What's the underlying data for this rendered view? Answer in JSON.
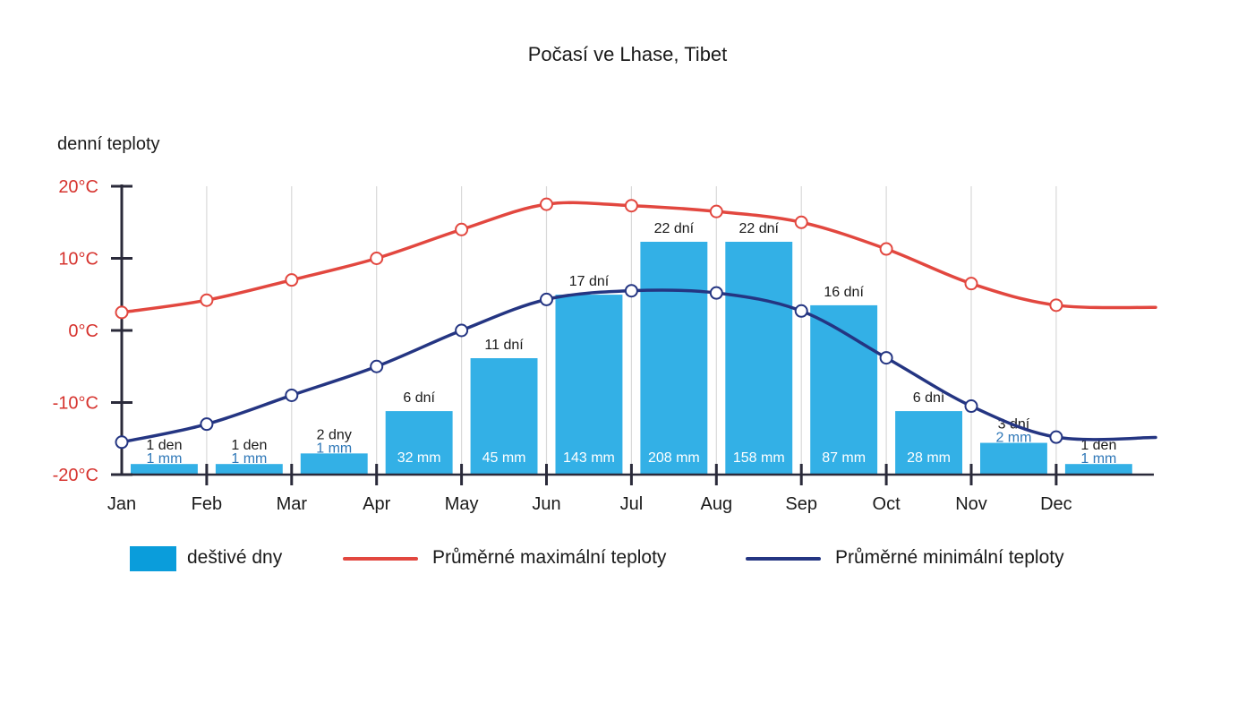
{
  "chart_data": {
    "type": "bar+line",
    "title": "Počasí ve Lhase, Tibet",
    "y_axis_title": "denní teploty",
    "y_ticks": [
      "20°C",
      "10°C",
      "0°C",
      "-10°C",
      "-20°C"
    ],
    "y_tick_values": [
      20,
      10,
      0,
      -10,
      -20
    ],
    "ylim": [
      -20,
      20
    ],
    "months": [
      "Jan",
      "Feb",
      "Mar",
      "Apr",
      "May",
      "Jun",
      "Jul",
      "Aug",
      "Sep",
      "Oct",
      "Nov",
      "Dec"
    ],
    "rain_days_labels": [
      "1 den",
      "1 den",
      "2 dny",
      "6 dní",
      "11 dní",
      "17 dní",
      "22 dní",
      "22 dní",
      "16 dní",
      "6 dní",
      "3 dní",
      "1 den"
    ],
    "rain_days": [
      1,
      1,
      2,
      6,
      11,
      17,
      22,
      22,
      16,
      6,
      3,
      1
    ],
    "precipitation_labels": [
      "1 mm",
      "1 mm",
      "1 mm",
      "32 mm",
      "45 mm",
      "143 mm",
      "208 mm",
      "158 mm",
      "87 mm",
      "28 mm",
      "2 mm",
      "1 mm"
    ],
    "max_temps": [
      2.5,
      4.2,
      7.0,
      10.0,
      14.0,
      17.5,
      17.3,
      16.5,
      15.0,
      11.3,
      6.5,
      3.5
    ],
    "min_temps": [
      -15.5,
      -13.0,
      -9.0,
      -5.0,
      0.0,
      4.3,
      5.5,
      5.2,
      2.7,
      -3.8,
      -10.5,
      -14.8
    ],
    "colors": {
      "bars": "#33b0e6",
      "max_line": "#e2473f",
      "min_line": "#243582",
      "axis": "#2a2a3a",
      "grid": "#d9d9d9",
      "y_ticks": "#d6332e",
      "label_inside_bar": "#ffffff",
      "label_small_precip": "#2f78b8"
    },
    "legend": [
      {
        "label": "deštivé dny",
        "type": "bar",
        "color": "#0a9ddb"
      },
      {
        "label": "Průměrné maximální teploty",
        "type": "line",
        "color": "#e2473f"
      },
      {
        "label": "Průměrné minimální teploty",
        "type": "line",
        "color": "#243582"
      }
    ],
    "legend_position": "bottom"
  }
}
